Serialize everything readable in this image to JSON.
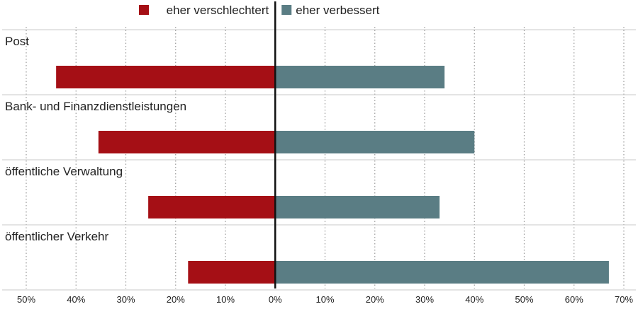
{
  "chart_data": {
    "type": "bar",
    "orientation": "horizontal-diverging",
    "categories": [
      "Post",
      "Bank- und Finanzdienstleistungen",
      "öffentliche Verwaltung",
      "öffentlicher Verkehr"
    ],
    "series": [
      {
        "name": "eher verschlechtert",
        "values": [
          44,
          35.5,
          25.5,
          17.5
        ],
        "direction": "left",
        "color": "#a50f15"
      },
      {
        "name": "eher verbessert",
        "values": [
          34,
          40,
          33,
          67
        ],
        "direction": "right",
        "color": "#5a7d84"
      }
    ],
    "xlim": [
      -50,
      70
    ],
    "x_ticks": [
      -50,
      -40,
      -30,
      -20,
      -10,
      0,
      10,
      20,
      30,
      40,
      50,
      60,
      70
    ],
    "x_tick_labels": [
      "50%",
      "40%",
      "30%",
      "20%",
      "10%",
      "0%",
      "10%",
      "20%",
      "30%",
      "40%",
      "50%",
      "60%",
      "70%"
    ],
    "grid": "vertical-dotted",
    "legend_position": "top-center"
  }
}
